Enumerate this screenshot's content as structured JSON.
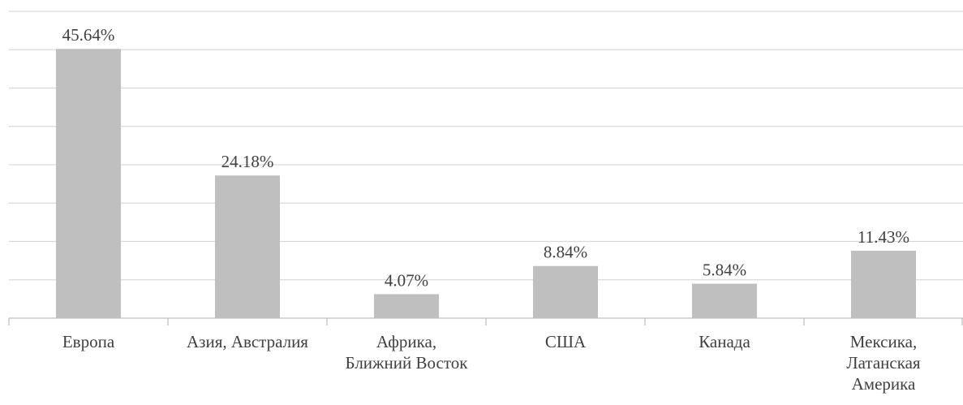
{
  "chart_data": {
    "type": "bar",
    "categories": [
      "Европа",
      "Азия, Австралия",
      "Африка,\nБлижний Восток",
      "США",
      "Канада",
      "Мексика,\nЛатанская\nАмерика"
    ],
    "values": [
      45.64,
      24.18,
      4.07,
      8.84,
      5.84,
      11.43
    ],
    "value_labels": [
      "45.64%",
      "24.18%",
      "4.07%",
      "8.84%",
      "5.84%",
      "11.43%"
    ],
    "color": "#bfbfbf",
    "ylim": [
      0,
      52
    ],
    "yticks": [
      0,
      6.5,
      13,
      19.5,
      26,
      32.5,
      39,
      45.5,
      52
    ],
    "grid": true
  }
}
